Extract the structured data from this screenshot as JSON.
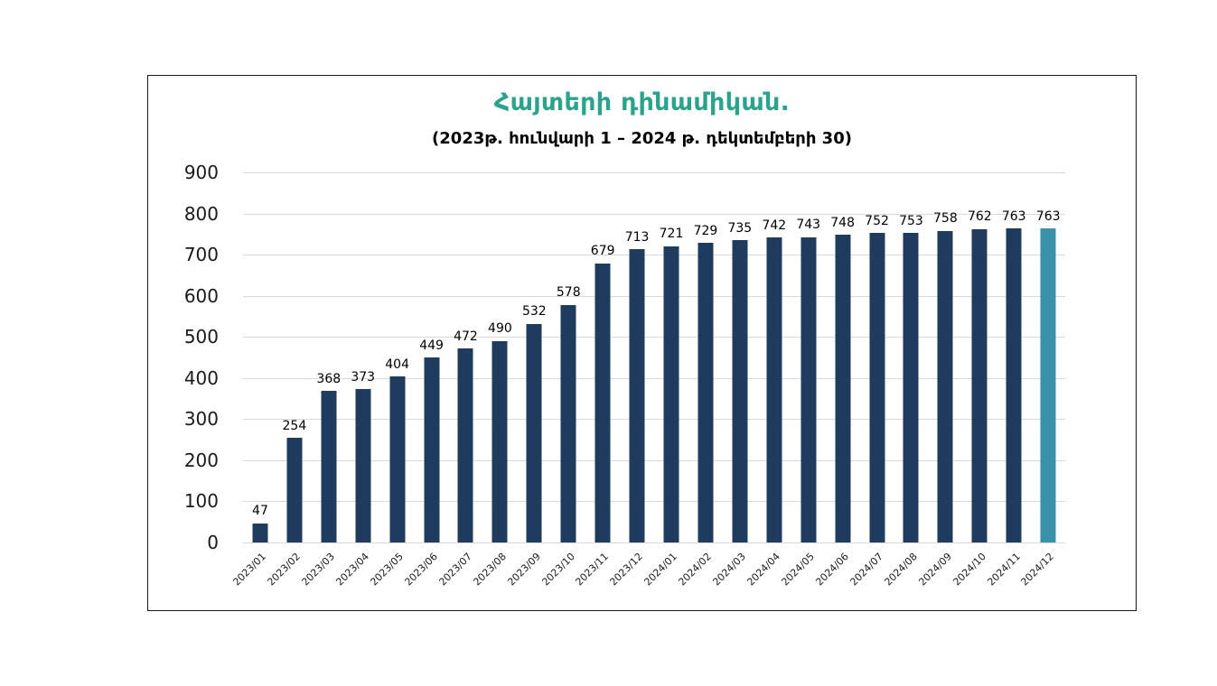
{
  "chart": {
    "background": "#FFFFFF",
    "border_color": "#1A1A1A",
    "title_color": "#2BA28C",
    "subtitle_color": "#000000",
    "bar_color": "#1F3B5E",
    "highlight_bar_color": "#3A92A8",
    "gridline_color": "#D9D9D9",
    "text_color": "#1A1A1A"
  },
  "chart_data": {
    "type": "bar",
    "title": "Հայտերի դինամիկան.",
    "subtitle": "(2023թ. հունվարի 1 – 2024 թ. դեկտեմբերի 30)",
    "categories": [
      "2023/01",
      "2023/02",
      "2023/03",
      "2023/04",
      "2023/05",
      "2023/06",
      "2023/07",
      "2023/08",
      "2023/09",
      "2023/10",
      "2023/11",
      "2023/12",
      "2024/01",
      "2024/02",
      "2024/03",
      "2024/04",
      "2024/05",
      "2024/06",
      "2024/07",
      "2024/08",
      "2024/09",
      "2024/10",
      "2024/11",
      "2024/12"
    ],
    "values": [
      47,
      254,
      368,
      373,
      404,
      449,
      472,
      490,
      532,
      578,
      679,
      713,
      721,
      729,
      735,
      742,
      743,
      748,
      752,
      753,
      758,
      762,
      763,
      763
    ],
    "xlabel": "",
    "ylabel": "",
    "ylim": [
      0,
      900
    ],
    "ytick_step": 100,
    "yticks": [
      0,
      100,
      200,
      300,
      400,
      500,
      600,
      700,
      800,
      900
    ],
    "grid": true,
    "legend_position": "none",
    "data_labels": true,
    "x_labels_rotation_deg": -45,
    "highlight_last_bar": true
  }
}
